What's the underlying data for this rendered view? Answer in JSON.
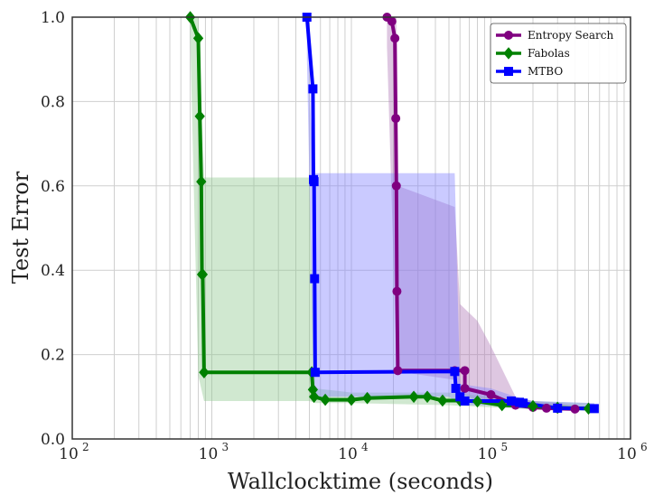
{
  "chart_data": {
    "type": "line",
    "title": "",
    "xlabel": "Wallclocktime (seconds)",
    "ylabel": "Test Error",
    "xscale": "log",
    "xlim": [
      100,
      1000000
    ],
    "ylim": [
      0.0,
      1.0
    ],
    "x_ticks": [
      {
        "value": 100,
        "base": "10",
        "exp": "2"
      },
      {
        "value": 1000,
        "base": "10",
        "exp": "3"
      },
      {
        "value": 10000,
        "base": "10",
        "exp": "4"
      },
      {
        "value": 100000,
        "base": "10",
        "exp": "5"
      },
      {
        "value": 1000000,
        "base": "10",
        "exp": "6"
      }
    ],
    "y_ticks": [
      "0.0",
      "0.2",
      "0.4",
      "0.6",
      "0.8",
      "1.0"
    ],
    "grid": true,
    "legend_position": "top-right",
    "series": [
      {
        "name": "Entropy Search",
        "color": "#800080",
        "marker": "circle",
        "x": [
          18000,
          19500,
          20500,
          20800,
          21000,
          21200,
          21500,
          55000,
          65000,
          65000,
          100000,
          150000,
          200000,
          250000,
          300000,
          400000
        ],
        "y": [
          1.0,
          0.99,
          0.95,
          0.76,
          0.6,
          0.35,
          0.162,
          0.162,
          0.162,
          0.12,
          0.105,
          0.08,
          0.075,
          0.073,
          0.072,
          0.071
        ],
        "band_x": [
          18000,
          21000,
          21500,
          55000,
          60000,
          80000,
          100000,
          150000,
          200000,
          300000,
          400000
        ],
        "band_lower": [
          0.93,
          0.2,
          0.16,
          0.14,
          0.11,
          0.09,
          0.08,
          0.075,
          0.07,
          0.068,
          0.066
        ],
        "band_upper": [
          1.0,
          1.0,
          0.6,
          0.55,
          0.32,
          0.28,
          0.22,
          0.1,
          0.09,
          0.085,
          0.08
        ],
        "band_color": "#b07ab8"
      },
      {
        "name": "Fabolas",
        "color": "#008000",
        "marker": "diamond",
        "x": [
          700,
          800,
          820,
          840,
          850,
          860,
          880,
          5200,
          5300,
          5400,
          6500,
          10000,
          13000,
          28000,
          35000,
          45000,
          60000,
          80000,
          120000,
          200000,
          300000,
          500000
        ],
        "y": [
          1.0,
          0.95,
          0.765,
          0.61,
          0.39,
          0.39,
          0.158,
          0.158,
          0.117,
          0.1,
          0.093,
          0.093,
          0.097,
          0.1,
          0.1,
          0.091,
          0.091,
          0.089,
          0.08,
          0.078,
          0.074,
          0.072
        ],
        "band_x": [
          700,
          800,
          880,
          5000,
          5500,
          10000,
          50000,
          100000,
          200000,
          500000
        ],
        "band_lower": [
          0.95,
          0.15,
          0.09,
          0.09,
          0.085,
          0.085,
          0.08,
          0.075,
          0.07,
          0.068
        ],
        "band_upper": [
          1.0,
          1.0,
          0.62,
          0.62,
          0.12,
          0.11,
          0.11,
          0.1,
          0.09,
          0.085
        ],
        "band_color": "#90c890"
      },
      {
        "name": "MTBO",
        "color": "#0000ff",
        "marker": "square",
        "x": [
          4800,
          5300,
          5350,
          5400,
          5450,
          5500,
          55000,
          56000,
          60000,
          65000,
          140000,
          160000,
          170000,
          300000,
          550000
        ],
        "y": [
          1.0,
          0.83,
          0.615,
          0.61,
          0.38,
          0.158,
          0.16,
          0.12,
          0.1,
          0.09,
          0.09,
          0.087,
          0.085,
          0.073,
          0.072
        ],
        "band_x": [
          4800,
          5300,
          5500,
          50000,
          55000,
          60000,
          100000,
          150000,
          200000,
          550000
        ],
        "band_lower": [
          0.9,
          0.2,
          0.1,
          0.1,
          0.09,
          0.08,
          0.08,
          0.075,
          0.07,
          0.068
        ],
        "band_upper": [
          1.0,
          0.63,
          0.63,
          0.63,
          0.63,
          0.13,
          0.12,
          0.1,
          0.09,
          0.085
        ],
        "band_color": "#8080ff"
      }
    ]
  }
}
